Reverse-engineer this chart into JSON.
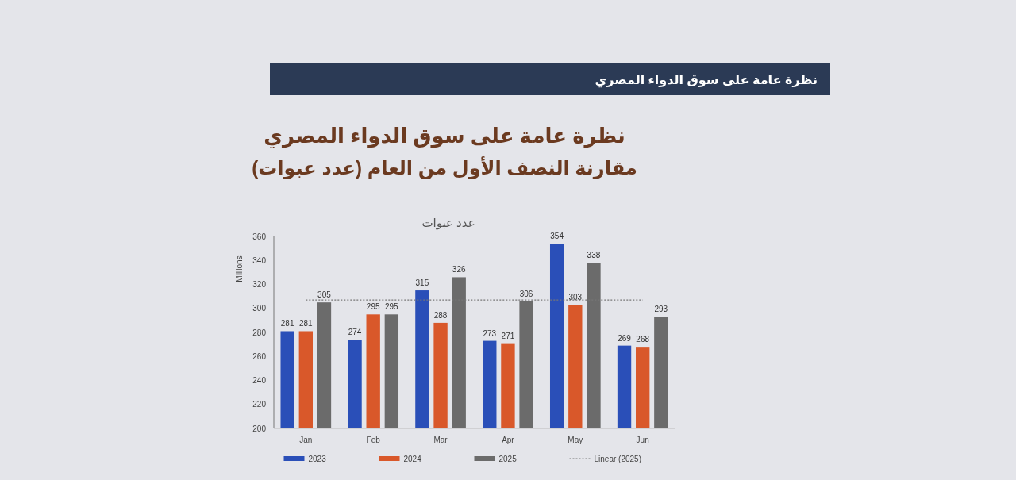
{
  "chart_data": {
    "type": "bar",
    "title": "نظرة عامة على سوق الدواء المصري",
    "subtitle": "مقارنة النصف الأول من العام (عدد عبوات)",
    "annotations": [
      "نظرة عامة على سوق الدواء المصري",
      "عدد عبوات"
    ],
    "ylabel": "Millions",
    "categories": [
      "Jan",
      "Feb",
      "Mar",
      "Apr",
      "May",
      "Jun"
    ],
    "series": [
      {
        "name": "2023",
        "color": "#2a4fb8",
        "values": [
          281,
          274,
          315,
          273,
          354,
          269
        ],
        "value_labels": [
          "281",
          "274",
          "315",
          "273",
          "354",
          "269"
        ]
      },
      {
        "name": "2024",
        "color": "#d9582a",
        "values": [
          281,
          295,
          288,
          271,
          303,
          268
        ],
        "value_labels": [
          "281",
          "295",
          "288",
          "271",
          "303",
          "268"
        ]
      },
      {
        "name": "2025",
        "color": "#6b6b6b",
        "values": [
          305,
          295,
          326,
          306,
          338,
          293
        ],
        "value_labels": [
          "305",
          "295",
          "326",
          "306",
          "338",
          "293"
        ]
      },
      {
        "name": "Linear (2025)",
        "type": "line",
        "color": "#777777",
        "line_style": "dotted",
        "values": [
          307,
          307,
          307,
          307,
          307,
          307
        ]
      }
    ],
    "ylim": [
      200,
      360
    ],
    "yticks": [
      200,
      220,
      240,
      260,
      280,
      300,
      320,
      340,
      360
    ],
    "grid": false,
    "legend": "bottom"
  }
}
